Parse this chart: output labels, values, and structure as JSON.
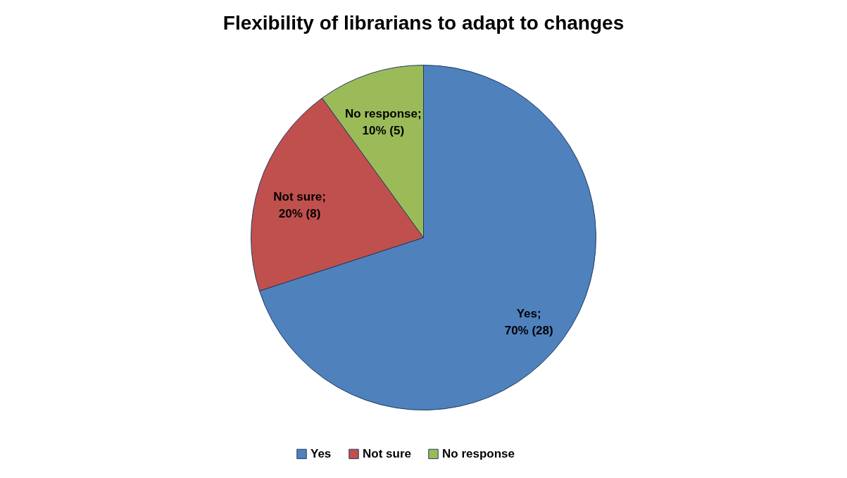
{
  "chart_data": {
    "type": "pie",
    "title": "Flexibility of librarians to adapt to changes",
    "categories": [
      "Yes",
      "Not sure",
      "No response"
    ],
    "values": [
      70,
      20,
      10
    ],
    "colors": [
      "#4f81bd",
      "#c0504d",
      "#9bbb59"
    ],
    "value_labels": [
      "Yes;\n70% (28)",
      "Not sure;\n20% (8)",
      "No response;\n10% (5)"
    ],
    "legend": "bottom"
  }
}
